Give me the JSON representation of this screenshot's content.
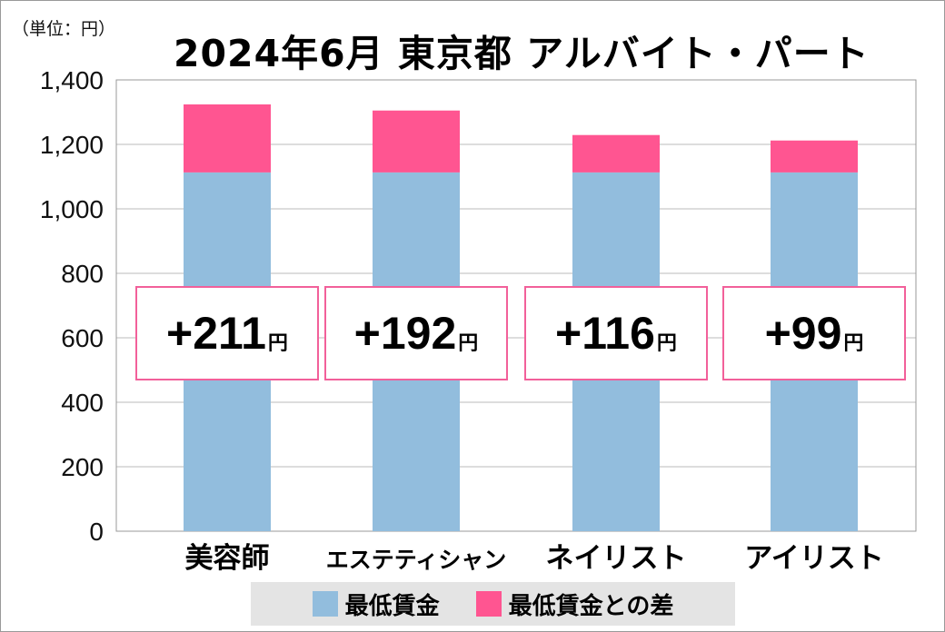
{
  "chart_data": {
    "type": "bar",
    "stacked": true,
    "title": "2024年6月 東京都 アルバイト・パート",
    "unit_label": "（単位：円）",
    "categories": [
      "美容師",
      "エステティシャン",
      "ネイリスト",
      "アイリスト"
    ],
    "series": [
      {
        "name": "最低賃金",
        "values": [
          1113,
          1113,
          1113,
          1113
        ],
        "color": "#92bddd"
      },
      {
        "name": "最低賃金との差",
        "values": [
          211,
          192,
          116,
          99
        ],
        "color": "#ff5591"
      }
    ],
    "data_labels": [
      "+211",
      "+192",
      "+116",
      "+99"
    ],
    "data_label_unit": "円",
    "ylim": [
      0,
      1400
    ],
    "yticks": [
      "0",
      "200",
      "400",
      "600",
      "800",
      "1,000",
      "1,200",
      "1,400"
    ],
    "ytick_values": [
      0,
      200,
      400,
      600,
      800,
      1000,
      1200,
      1400
    ],
    "grid": true,
    "legend_position": "bottom"
  }
}
